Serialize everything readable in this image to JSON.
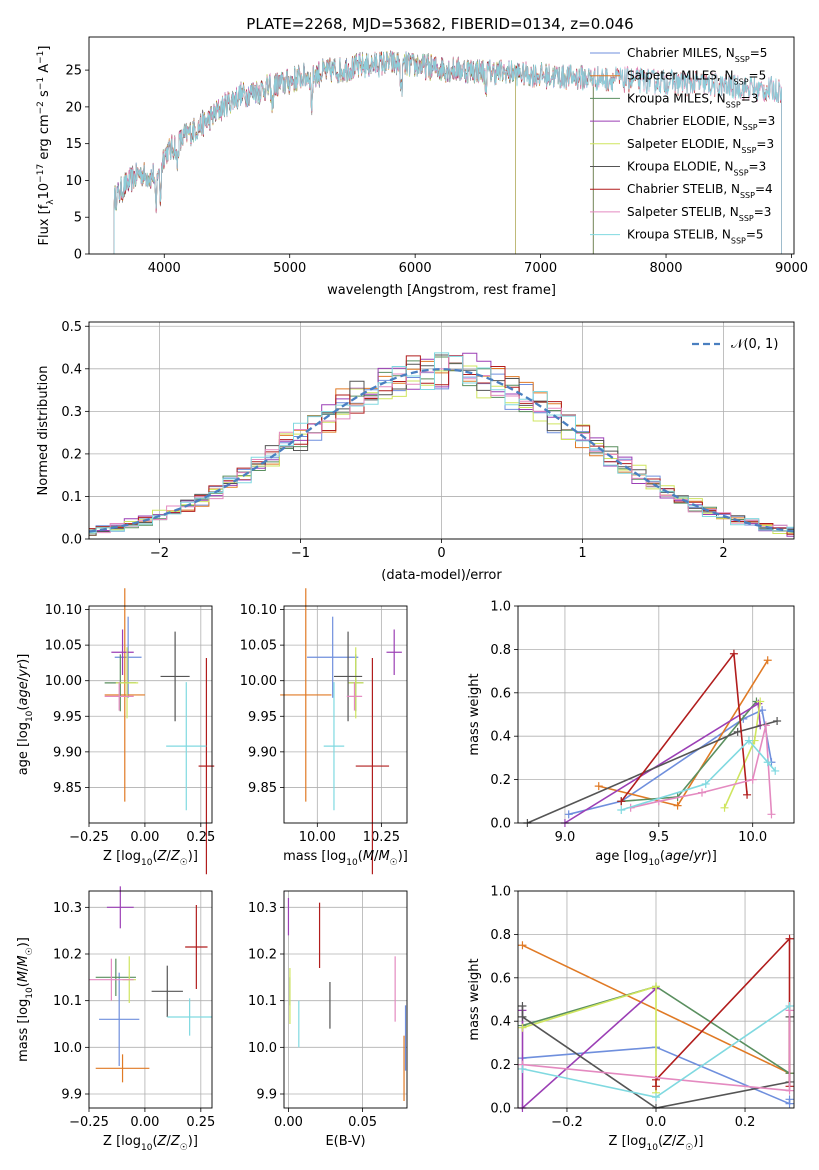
{
  "figure_title": "PLATE=2268, MJD=53682, FIBERID=0134, z=0.046",
  "colors": [
    "#6f8fdd",
    "#e07a25",
    "#5a8f5f",
    "#9b3fb5",
    "#cfe55f",
    "#555555",
    "#b11d1d",
    "#e48ac0",
    "#80d9e0"
  ],
  "chart_data": [
    {
      "id": "spectrum",
      "type": "line",
      "title": "PLATE=2268, MJD=53682, FIBERID=0134, z=0.046",
      "xlabel": "wavelength [Angstrom, rest frame]",
      "ylabel": "Flux [f_λ 10^-17 erg cm^-2 s^-1 A^-1]",
      "xlim": [
        3400,
        9020
      ],
      "ylim": [
        0,
        29.5
      ],
      "xticks": [
        "4000",
        "5000",
        "6000",
        "7000",
        "8000",
        "9000"
      ],
      "yticks": [
        "0",
        "5",
        "10",
        "15",
        "20",
        "25"
      ],
      "grid": false,
      "legend_position": "top-right",
      "continuum_x": [
        3600,
        3700,
        3800,
        3900,
        4000,
        4100,
        4200,
        4300,
        4400,
        4500,
        4600,
        4800,
        5000,
        5200,
        5400,
        5600,
        5800,
        6000,
        6200,
        6400,
        6600,
        6800,
        7000,
        7200,
        7400,
        7600,
        7800,
        8000,
        8200,
        8400,
        8600,
        8800
      ],
      "continuum_y": [
        7.5,
        9.5,
        11,
        10.5,
        13.5,
        15,
        16.5,
        17.5,
        19,
        20.5,
        21.5,
        22.5,
        23.5,
        24.5,
        25,
        25.6,
        26,
        25.6,
        25.2,
        25,
        24.8,
        24.6,
        24.3,
        24.1,
        23.9,
        23.8,
        23.6,
        23.4,
        23.2,
        22.9,
        22.6,
        22.3
      ],
      "series": [
        {
          "name": "Chabrier MILES, N_SSP=5",
          "legend_main": "Chabrier MILES, N",
          "legend_sub": "SSP",
          "legend_tail": "=5",
          "wmax": 7420
        },
        {
          "name": "Salpeter MILES, N_SSP=5",
          "legend_main": "Salpeter MILES, N",
          "legend_sub": "SSP",
          "legend_tail": "=5",
          "wmax": 7420
        },
        {
          "name": "Kroupa MILES, N_SSP=3",
          "legend_main": "Kroupa MILES, N",
          "legend_sub": "SSP",
          "legend_tail": "=3",
          "wmax": 7420
        },
        {
          "name": "Chabrier ELODIE, N_SSP=3",
          "legend_main": "Chabrier ELODIE, N",
          "legend_sub": "SSP",
          "legend_tail": "=3",
          "wmax": 6800
        },
        {
          "name": "Salpeter ELODIE, N_SSP=3",
          "legend_main": "Salpeter ELODIE, N",
          "legend_sub": "SSP",
          "legend_tail": "=3",
          "wmax": 6800
        },
        {
          "name": "Kroupa ELODIE, N_SSP=3",
          "legend_main": "Kroupa ELODIE, N",
          "legend_sub": "SSP",
          "legend_tail": "=3",
          "wmax": 6800
        },
        {
          "name": "Chabrier STELIB, N_SSP=4",
          "legend_main": "Chabrier STELIB, N",
          "legend_sub": "SSP",
          "legend_tail": "=4",
          "wmax": 8920
        },
        {
          "name": "Salpeter STELIB, N_SSP=3",
          "legend_main": "Salpeter STELIB, N",
          "legend_sub": "SSP",
          "legend_tail": "=3",
          "wmax": 8920
        },
        {
          "name": "Kroupa STELIB, N_SSP=5",
          "legend_main": "Kroupa STELIB, N",
          "legend_sub": "SSP",
          "legend_tail": "=5",
          "wmax": 8920
        }
      ]
    },
    {
      "id": "residuals",
      "type": "histogram",
      "xlabel": "(data-model)/error",
      "ylabel": "Normed distribution",
      "xlim": [
        -2.5,
        2.5
      ],
      "ylim": [
        0,
        0.51
      ],
      "xticks": [
        "−2",
        "−1",
        "0",
        "1",
        "2"
      ],
      "yticks": [
        "0.0",
        "0.1",
        "0.2",
        "0.3",
        "0.4",
        "0.5"
      ],
      "grid": true,
      "bin_width": 0.1,
      "reference_curve": "N(0,1)",
      "legend_label": "𝒩(0, 1)",
      "legend_position": "top-right"
    },
    {
      "id": "age_vs_Z",
      "type": "errorbar",
      "xlabel": "Z [log10(Z/Z☉)]",
      "ylabel": "age [log10(age/yr)]",
      "xlim": [
        -0.25,
        0.3
      ],
      "ylim": [
        9.8,
        10.105
      ],
      "xticks": [
        "−0.25",
        "0.00",
        "0.25"
      ],
      "yticks": [
        "9.85",
        "9.90",
        "9.95",
        "10.00",
        "10.05",
        "10.10"
      ],
      "points": [
        {
          "x": -0.075,
          "xerr": 0.06,
          "y": 10.033,
          "yerr": 0.057
        },
        {
          "x": -0.09,
          "xerr": 0.09,
          "y": 9.98,
          "yerr": 0.15
        },
        {
          "x": -0.11,
          "xerr": 0.07,
          "y": 9.997,
          "yerr": 0.04
        },
        {
          "x": -0.1,
          "xerr": 0.05,
          "y": 10.04,
          "yerr": 0.032
        },
        {
          "x": -0.08,
          "xerr": 0.05,
          "y": 9.997,
          "yerr": 0.05
        },
        {
          "x": 0.135,
          "xerr": 0.065,
          "y": 10.006,
          "yerr": 0.063
        },
        {
          "x": 0.275,
          "xerr": 0.035,
          "y": 9.88,
          "yerr": 0.152
        },
        {
          "x": -0.115,
          "xerr": 0.065,
          "y": 9.978,
          "yerr": 0.02
        },
        {
          "x": 0.185,
          "xerr": 0.09,
          "y": 9.908,
          "yerr": 0.09
        }
      ]
    },
    {
      "id": "age_vs_mass",
      "type": "errorbar",
      "xlabel": "mass [log10(M/M☉)]",
      "ylabel": "",
      "xlim": [
        9.87,
        10.35
      ],
      "ylim": [
        9.8,
        10.105
      ],
      "xticks": [
        "10.00",
        "10.25"
      ],
      "yticks": [
        "9.85",
        "9.90",
        "9.95",
        "10.00",
        "10.05",
        "10.10"
      ],
      "points": [
        {
          "x": 10.06,
          "xerr": 0.1,
          "y": 10.033,
          "yerr": 0.057
        },
        {
          "x": 9.955,
          "xerr": 0.1,
          "y": 9.98,
          "yerr": 0.15
        },
        {
          "x": 10.15,
          "xerr": 0.03,
          "y": 9.997,
          "yerr": 0.04
        },
        {
          "x": 10.3,
          "xerr": 0.03,
          "y": 10.04,
          "yerr": 0.032
        },
        {
          "x": 10.15,
          "xerr": 0.03,
          "y": 9.997,
          "yerr": 0.05
        },
        {
          "x": 10.12,
          "xerr": 0.055,
          "y": 10.006,
          "yerr": 0.063
        },
        {
          "x": 10.215,
          "xerr": 0.065,
          "y": 9.88,
          "yerr": 0.152
        },
        {
          "x": 10.145,
          "xerr": 0.03,
          "y": 9.978,
          "yerr": 0.02
        },
        {
          "x": 10.065,
          "xerr": 0.04,
          "y": 9.908,
          "yerr": 0.09
        }
      ]
    },
    {
      "id": "massweight_vs_age",
      "type": "line",
      "xlabel": "age [log10(age/yr)]",
      "ylabel": "mass weight",
      "xlim": [
        8.75,
        10.22
      ],
      "ylim": [
        0,
        1
      ],
      "xticks": [
        "9.0",
        "9.5",
        "10.0"
      ],
      "yticks": [
        "0.0",
        "0.2",
        "0.4",
        "0.6",
        "0.8",
        "1.0"
      ],
      "grid": true,
      "series": [
        {
          "x": [
            9.02,
            9.3,
            9.95,
            10.05,
            10.1
          ],
          "y": [
            0.04,
            0.1,
            0.48,
            0.52,
            0.28
          ]
        },
        {
          "x": [
            9.18,
            9.6,
            10.08
          ],
          "y": [
            0.17,
            0.08,
            0.75
          ]
        },
        {
          "x": [
            9.3,
            9.6,
            10.02
          ],
          "y": [
            0.1,
            0.12,
            0.56
          ]
        },
        {
          "x": [
            9.0,
            10.03,
            10.04
          ],
          "y": [
            0.0,
            0.55,
            0.45
          ]
        },
        {
          "x": [
            9.85,
            10.01,
            10.04
          ],
          "y": [
            0.07,
            0.38,
            0.56
          ]
        },
        {
          "x": [
            8.8,
            9.92,
            10.13
          ],
          "y": [
            0.0,
            0.42,
            0.47
          ]
        },
        {
          "x": [
            9.3,
            9.9,
            9.97
          ],
          "y": [
            0.1,
            0.78,
            0.13
          ]
        },
        {
          "x": [
            9.35,
            9.5,
            9.73,
            10.0,
            10.07,
            10.1
          ],
          "y": [
            0.07,
            0.1,
            0.14,
            0.2,
            0.45,
            0.04
          ]
        },
        {
          "x": [
            9.3,
            9.75,
            9.98,
            10.08,
            10.12
          ],
          "y": [
            0.06,
            0.18,
            0.38,
            0.28,
            0.24
          ]
        }
      ]
    },
    {
      "id": "mass_vs_Z",
      "type": "errorbar",
      "xlabel": "Z [log10(Z/Z☉)]",
      "ylabel": "mass [log10(M/M☉)]",
      "xlim": [
        -0.25,
        0.3
      ],
      "ylim": [
        9.87,
        10.335
      ],
      "xticks": [
        "−0.25",
        "0.00",
        "0.25"
      ],
      "yticks": [
        "9.9",
        "10.0",
        "10.1",
        "10.2",
        "10.3"
      ],
      "points": [
        {
          "x": -0.115,
          "xerr": 0.09,
          "y": 10.06,
          "yerr": 0.1
        },
        {
          "x": -0.1,
          "xerr": 0.12,
          "y": 9.955,
          "yerr": 0.03
        },
        {
          "x": -0.13,
          "xerr": 0.09,
          "y": 10.15,
          "yerr": 0.04
        },
        {
          "x": -0.11,
          "xerr": 0.06,
          "y": 10.3,
          "yerr": 0.045
        },
        {
          "x": -0.07,
          "xerr": 0.03,
          "y": 10.145,
          "yerr": 0.05
        },
        {
          "x": 0.1,
          "xerr": 0.07,
          "y": 10.12,
          "yerr": 0.055
        },
        {
          "x": 0.23,
          "xerr": 0.05,
          "y": 10.215,
          "yerr": 0.09
        },
        {
          "x": -0.15,
          "xerr": 0.1,
          "y": 10.145,
          "yerr": 0.045
        },
        {
          "x": 0.2,
          "xerr": 0.1,
          "y": 10.065,
          "yerr": 0.04
        }
      ]
    },
    {
      "id": "mass_vs_ebv",
      "type": "errorbar",
      "xlabel": "E(B-V)",
      "ylabel": "",
      "xlim": [
        -0.003,
        0.08
      ],
      "ylim": [
        9.87,
        10.335
      ],
      "xticks": [
        "0.00",
        "0.05"
      ],
      "yticks": [
        "9.9",
        "10.0",
        "10.1",
        "10.2",
        "10.3"
      ],
      "points": [
        {
          "x": 0.079,
          "xerr": 0,
          "y": 10.02,
          "yerr": 0.07
        },
        {
          "x": 0.078,
          "xerr": 0,
          "y": 9.955,
          "yerr": 0.07
        },
        {
          "x": 0.001,
          "xerr": 0,
          "y": 10.12,
          "yerr": 0.03
        },
        {
          "x": 0.0,
          "xerr": 0,
          "y": 10.28,
          "yerr": 0.04
        },
        {
          "x": 0.001,
          "xerr": 0,
          "y": 10.11,
          "yerr": 0.06
        },
        {
          "x": 0.028,
          "xerr": 0,
          "y": 10.09,
          "yerr": 0.05
        },
        {
          "x": 0.021,
          "xerr": 0,
          "y": 10.24,
          "yerr": 0.07
        },
        {
          "x": 0.072,
          "xerr": 0,
          "y": 10.125,
          "yerr": 0.07
        },
        {
          "x": 0.007,
          "xerr": 0,
          "y": 10.05,
          "yerr": 0.05
        }
      ]
    },
    {
      "id": "massweight_vs_Z",
      "type": "line",
      "xlabel": "Z [log10(Z/Z☉)]",
      "ylabel": "mass weight",
      "xlim": [
        -0.31,
        0.31
      ],
      "ylim": [
        0,
        1
      ],
      "xticks": [
        "−0.2",
        "0.0",
        "0.2"
      ],
      "yticks": [
        "0.0",
        "0.2",
        "0.4",
        "0.6",
        "0.8",
        "1.0"
      ],
      "grid": true,
      "series": [
        {
          "x": [
            -0.3,
            0.0,
            0.3,
            0.3
          ],
          "y": [
            0.23,
            0.28,
            0.02,
            0.04
          ]
        },
        {
          "x": [
            -0.3,
            0.3
          ],
          "y": [
            0.75,
            0.16
          ]
        },
        {
          "x": [
            -0.3,
            0.0,
            0.3
          ],
          "y": [
            0.38,
            0.56,
            0.16
          ]
        },
        {
          "x": [
            -0.3,
            -0.3,
            0.0
          ],
          "y": [
            0.45,
            0.0,
            0.55
          ]
        },
        {
          "x": [
            -0.3,
            0.0,
            0.0
          ],
          "y": [
            0.37,
            0.56,
            0.07
          ]
        },
        {
          "x": [
            -0.3,
            -0.3,
            0.0,
            0.3,
            0.3
          ],
          "y": [
            0.47,
            0.42,
            0.0,
            0.12,
            0.42
          ]
        },
        {
          "x": [
            0.0,
            0.0,
            0.3,
            0.3
          ],
          "y": [
            0.1,
            0.13,
            0.78,
            0.1
          ]
        },
        {
          "x": [
            -0.3,
            0.3,
            0.3
          ],
          "y": [
            0.2,
            0.08,
            0.45
          ]
        },
        {
          "x": [
            -0.3,
            0.0,
            0.3
          ],
          "y": [
            0.18,
            0.05,
            0.47
          ]
        }
      ]
    }
  ]
}
